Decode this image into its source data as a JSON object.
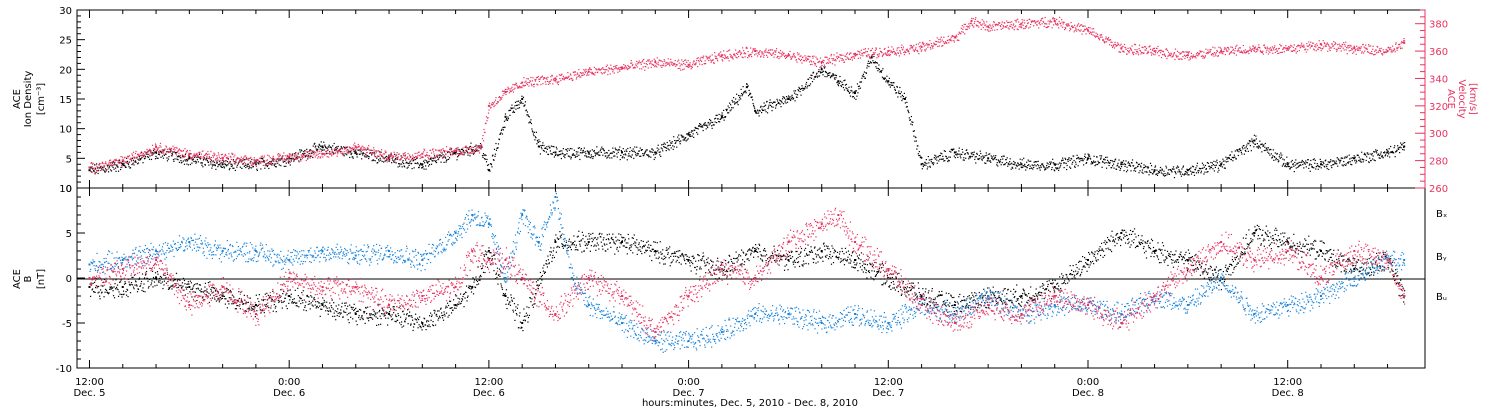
{
  "colors": {
    "black": "#000000",
    "red": "#e8335f",
    "blue": "#1a84db"
  },
  "chart_data": [
    {
      "type": "scatter",
      "panel": "top",
      "ylabel_left_lines": [
        "ACE",
        "Ion Density",
        "[cm⁻³]"
      ],
      "ylabel_right_lines": [
        "ACE",
        "Velocity",
        "[km/s]"
      ],
      "ylim_left": [
        0,
        30
      ],
      "ylim_right": [
        260,
        390
      ],
      "left_ticks": [
        "0",
        "5",
        "10",
        "15",
        "20",
        "25",
        "30"
      ],
      "right_ticks": [
        "260",
        "280",
        "300",
        "320",
        "340",
        "360",
        "380"
      ],
      "series": [
        {
          "axis": "left",
          "color": "#000000",
          "x": [
            0,
            4,
            8,
            12,
            16,
            20,
            24,
            28,
            32,
            36,
            40,
            44,
            47,
            48,
            50,
            52,
            54,
            56,
            60,
            64,
            68,
            72,
            76,
            79,
            80,
            84,
            88,
            90,
            92,
            94,
            96,
            98,
            100,
            104,
            108,
            112,
            116,
            120,
            124,
            128,
            132,
            136,
            140,
            144,
            148,
            152,
            156,
            158
          ],
          "y": [
            3,
            4,
            6,
            5,
            4,
            4,
            5,
            7,
            6,
            5,
            4,
            6,
            7,
            3,
            12,
            15,
            7,
            6,
            6,
            6,
            6,
            9,
            12,
            17,
            13,
            15,
            20,
            18,
            16,
            22,
            18,
            15,
            4,
            6,
            5,
            4,
            4,
            5,
            4,
            3,
            3,
            4,
            8,
            4,
            4,
            5,
            6,
            7
          ]
        },
        {
          "axis": "right",
          "color": "#e8335f",
          "x": [
            0,
            4,
            8,
            12,
            16,
            20,
            24,
            28,
            32,
            36,
            40,
            44,
            47,
            48,
            50,
            52,
            56,
            60,
            64,
            68,
            72,
            76,
            80,
            84,
            88,
            92,
            96,
            100,
            104,
            106,
            108,
            112,
            116,
            120,
            124,
            128,
            132,
            136,
            140,
            144,
            148,
            152,
            156,
            158
          ],
          "y": [
            275,
            280,
            290,
            285,
            282,
            280,
            283,
            285,
            290,
            283,
            285,
            287,
            290,
            320,
            330,
            337,
            340,
            345,
            348,
            352,
            350,
            357,
            360,
            357,
            352,
            358,
            360,
            363,
            370,
            382,
            378,
            380,
            382,
            375,
            362,
            360,
            357,
            360,
            362,
            362,
            365,
            362,
            360,
            366
          ]
        }
      ]
    },
    {
      "type": "scatter",
      "panel": "bottom",
      "ylabel_left_lines": [
        "ACE",
        "B",
        "[nT]"
      ],
      "ylim": [
        -10,
        10
      ],
      "left_ticks": [
        "-10",
        "-5",
        "0",
        "5",
        "10"
      ],
      "zero_line": true,
      "xlabel": "hours:minutes, Dec. 5, 2010 - Dec. 8, 2010",
      "x_ticks": [
        {
          "x": 0,
          "time": "12:00",
          "date": "Dec. 5"
        },
        {
          "x": 24,
          "time": "0:00",
          "date": "Dec. 6"
        },
        {
          "x": 48,
          "time": "12:00",
          "date": "Dec. 6"
        },
        {
          "x": 72,
          "time": "0:00",
          "date": "Dec. 7"
        },
        {
          "x": 96,
          "time": "12:00",
          "date": "Dec. 7"
        },
        {
          "x": 120,
          "time": "0:00",
          "date": "Dec. 8"
        },
        {
          "x": 144,
          "time": "12:00",
          "date": "Dec. 8"
        }
      ],
      "xlim": [
        -1.5,
        160.5
      ],
      "legend_placement": "right",
      "series": [
        {
          "name": "Bₓ",
          "color": "#000000",
          "x": [
            0,
            4,
            8,
            12,
            16,
            20,
            24,
            28,
            32,
            36,
            40,
            44,
            46,
            48,
            50,
            52,
            56,
            60,
            64,
            68,
            72,
            76,
            80,
            84,
            88,
            92,
            96,
            100,
            104,
            108,
            112,
            116,
            120,
            124,
            128,
            132,
            136,
            140,
            144,
            148,
            152,
            156,
            158
          ],
          "y": [
            -1,
            -1,
            0,
            -1,
            -2,
            -3,
            -2,
            -3,
            -4,
            -4,
            -5,
            -3,
            -1,
            3,
            -2,
            -5,
            4,
            4,
            4,
            3,
            2,
            1,
            3,
            2,
            3,
            2,
            0,
            -2,
            -3,
            -2,
            -2,
            -1,
            2,
            5,
            3,
            2,
            0,
            5,
            4,
            3,
            1,
            2,
            -2
          ]
        },
        {
          "name": "Bᵧ",
          "color": "#1a84db",
          "x": [
            0,
            4,
            8,
            12,
            16,
            20,
            24,
            28,
            32,
            36,
            40,
            44,
            46,
            48,
            50,
            52,
            54,
            56,
            58,
            60,
            64,
            68,
            72,
            76,
            80,
            84,
            88,
            92,
            96,
            100,
            104,
            108,
            112,
            116,
            120,
            124,
            128,
            132,
            136,
            140,
            144,
            148,
            152,
            156,
            158
          ],
          "y": [
            1.5,
            2,
            3,
            4,
            3,
            3,
            2,
            3,
            2.5,
            3,
            2,
            5,
            7,
            6,
            0,
            7,
            4,
            9,
            0,
            -3,
            -5,
            -7,
            -7,
            -6,
            -4,
            -4,
            -5,
            -4,
            -5,
            -3,
            -4,
            -2,
            -4,
            -3,
            -3,
            -4,
            -2,
            -3,
            0,
            -4,
            -3,
            -2,
            0,
            2,
            2
          ]
        },
        {
          "name": "Bᵤ",
          "color": "#e8335f",
          "x": [
            0,
            4,
            8,
            12,
            16,
            20,
            24,
            28,
            32,
            36,
            40,
            44,
            46,
            48,
            50,
            52,
            56,
            60,
            64,
            68,
            72,
            76,
            80,
            84,
            88,
            90,
            92,
            96,
            100,
            104,
            108,
            112,
            116,
            120,
            124,
            128,
            132,
            136,
            140,
            144,
            148,
            152,
            156,
            158
          ],
          "y": [
            0,
            1,
            2,
            -3,
            -1,
            -4,
            0,
            -1,
            -1,
            -3,
            -2,
            -1,
            3,
            2,
            2,
            0,
            -4,
            0,
            -2,
            -6,
            -2,
            1,
            0,
            4,
            6,
            7,
            4,
            1,
            -3,
            -5,
            -3,
            -4,
            -2,
            -3,
            -5,
            -2,
            1,
            4,
            2,
            3,
            0,
            3,
            2,
            -2
          ]
        }
      ]
    }
  ]
}
